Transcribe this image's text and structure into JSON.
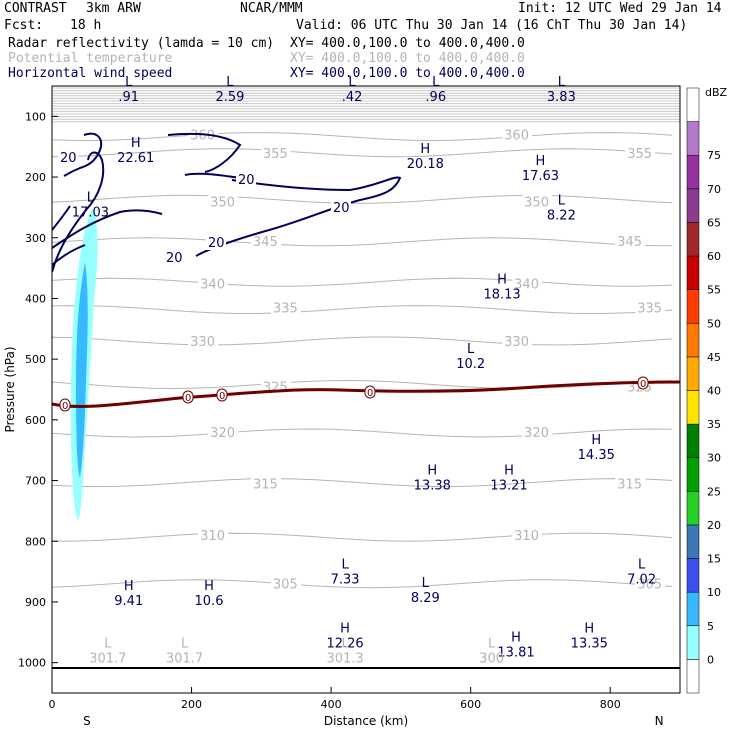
{
  "header": {
    "model": "CONTRAST",
    "resolution": "3km ARW",
    "center": "NCAR/MMM",
    "init": "Init: 12 UTC Wed 29 Jan 14",
    "fcst_label": "Fcst:",
    "fcst_value": "18 h",
    "valid": "Valid: 06 UTC Thu 30 Jan 14 (16 ChT Thu 30 Jan 14)",
    "fields": [
      {
        "name": "Radar reflectivity (lamda = 10 cm)",
        "xy": "XY= 400.0,100.0 to 400.0,400.0",
        "color": "#000000"
      },
      {
        "name": "Potential temperature",
        "xy": "XY= 400.0,100.0 to 400.0,400.0",
        "color": "#b4b4b4"
      },
      {
        "name": "Horizontal wind speed",
        "xy": "XY= 400.0,100.0 to 400.0,400.0",
        "color": "#00005a"
      }
    ]
  },
  "chart_data": {
    "type": "cross-section",
    "xlabel": "Distance (km)",
    "ylabel": "Pressure (hPa)",
    "x_ticks": [
      0,
      200,
      400,
      600,
      800
    ],
    "xlim": [
      0,
      900
    ],
    "y_ticks": [
      100,
      200,
      300,
      400,
      500,
      600,
      700,
      800,
      900,
      1000
    ],
    "ylim": [
      50,
      1050
    ],
    "x_end_labels": {
      "left": "S",
      "right": "N"
    },
    "colorbar": {
      "unit": "dBZ",
      "levels": [
        0,
        5,
        10,
        15,
        20,
        25,
        30,
        35,
        40,
        45,
        50,
        55,
        60,
        65,
        70,
        75
      ],
      "colors": [
        "#ffffff",
        "#96ffff",
        "#37b9ff",
        "#3c50f0",
        "#3c78b4",
        "#27d027",
        "#00a000",
        "#008000",
        "#ffe400",
        "#ffaa00",
        "#ff7800",
        "#ff3c00",
        "#c80000",
        "#a02828",
        "#8c3c8c",
        "#9632a0",
        "#b478c8",
        "#ffffff"
      ]
    },
    "theta_contours": [
      {
        "label": "360",
        "p": 130
      },
      {
        "label": "355",
        "p": 160
      },
      {
        "label": "350",
        "p": 240
      },
      {
        "label": "345",
        "p": 305
      },
      {
        "label": "340",
        "p": 375
      },
      {
        "label": "335",
        "p": 415
      },
      {
        "label": "330",
        "p": 470
      },
      {
        "label": "325",
        "p": 545
      },
      {
        "label": "320",
        "p": 620
      },
      {
        "label": "315",
        "p": 705
      },
      {
        "label": "310",
        "p": 790
      },
      {
        "label": "305",
        "p": 870
      }
    ],
    "wind_contour_level": "20",
    "zero_reflectivity_label": "0",
    "extrema": [
      {
        "type": "L",
        "value": ".91",
        "x": 110,
        "p": 60,
        "field": "wind"
      },
      {
        "type": "L",
        "value": "2.59",
        "x": 255,
        "p": 60,
        "field": "wind"
      },
      {
        "type": "L",
        "value": ".42",
        "x": 430,
        "p": 60,
        "field": "wind"
      },
      {
        "type": "L",
        "value": ".96",
        "x": 550,
        "p": 60,
        "field": "wind"
      },
      {
        "type": "L",
        "value": "3.83",
        "x": 730,
        "p": 60,
        "field": "wind"
      },
      {
        "type": "H",
        "value": "22.61",
        "x": 120,
        "p": 160,
        "field": "wind"
      },
      {
        "type": "L",
        "value": "17.03",
        "x": 55,
        "p": 250,
        "field": "wind"
      },
      {
        "type": "H",
        "value": "20.18",
        "x": 535,
        "p": 170,
        "field": "wind"
      },
      {
        "type": "H",
        "value": "17.63",
        "x": 700,
        "p": 190,
        "field": "wind"
      },
      {
        "type": "L",
        "value": "8.22",
        "x": 730,
        "p": 255,
        "field": "wind"
      },
      {
        "type": "H",
        "value": "18.13",
        "x": 645,
        "p": 385,
        "field": "wind"
      },
      {
        "type": "L",
        "value": "10.2",
        "x": 600,
        "p": 500,
        "field": "wind"
      },
      {
        "type": "H",
        "value": "14.35",
        "x": 780,
        "p": 650,
        "field": "wind"
      },
      {
        "type": "H",
        "value": "13.38",
        "x": 545,
        "p": 700,
        "field": "wind"
      },
      {
        "type": "H",
        "value": "13.21",
        "x": 655,
        "p": 700,
        "field": "wind"
      },
      {
        "type": "L",
        "value": "7.33",
        "x": 420,
        "p": 855,
        "field": "wind"
      },
      {
        "type": "L",
        "value": "8.29",
        "x": 535,
        "p": 885,
        "field": "wind"
      },
      {
        "type": "L",
        "value": "7.02",
        "x": 845,
        "p": 855,
        "field": "wind"
      },
      {
        "type": "H",
        "value": "9.41",
        "x": 110,
        "p": 890,
        "field": "wind"
      },
      {
        "type": "H",
        "value": "10.6",
        "x": 225,
        "p": 890,
        "field": "wind"
      },
      {
        "type": "H",
        "value": "12.26",
        "x": 420,
        "p": 960,
        "field": "wind"
      },
      {
        "type": "H",
        "value": "13.81",
        "x": 665,
        "p": 975,
        "field": "wind"
      },
      {
        "type": "H",
        "value": "13.35",
        "x": 770,
        "p": 960,
        "field": "wind"
      },
      {
        "type": "L",
        "value": "301.7",
        "x": 80,
        "p": 985,
        "field": "theta"
      },
      {
        "type": "L",
        "value": "301.7",
        "x": 190,
        "p": 985,
        "field": "theta"
      },
      {
        "type": "L",
        "value": "301.3",
        "x": 420,
        "p": 985,
        "field": "theta"
      },
      {
        "type": "L",
        "value": "300",
        "x": 630,
        "p": 985,
        "field": "theta"
      }
    ]
  }
}
